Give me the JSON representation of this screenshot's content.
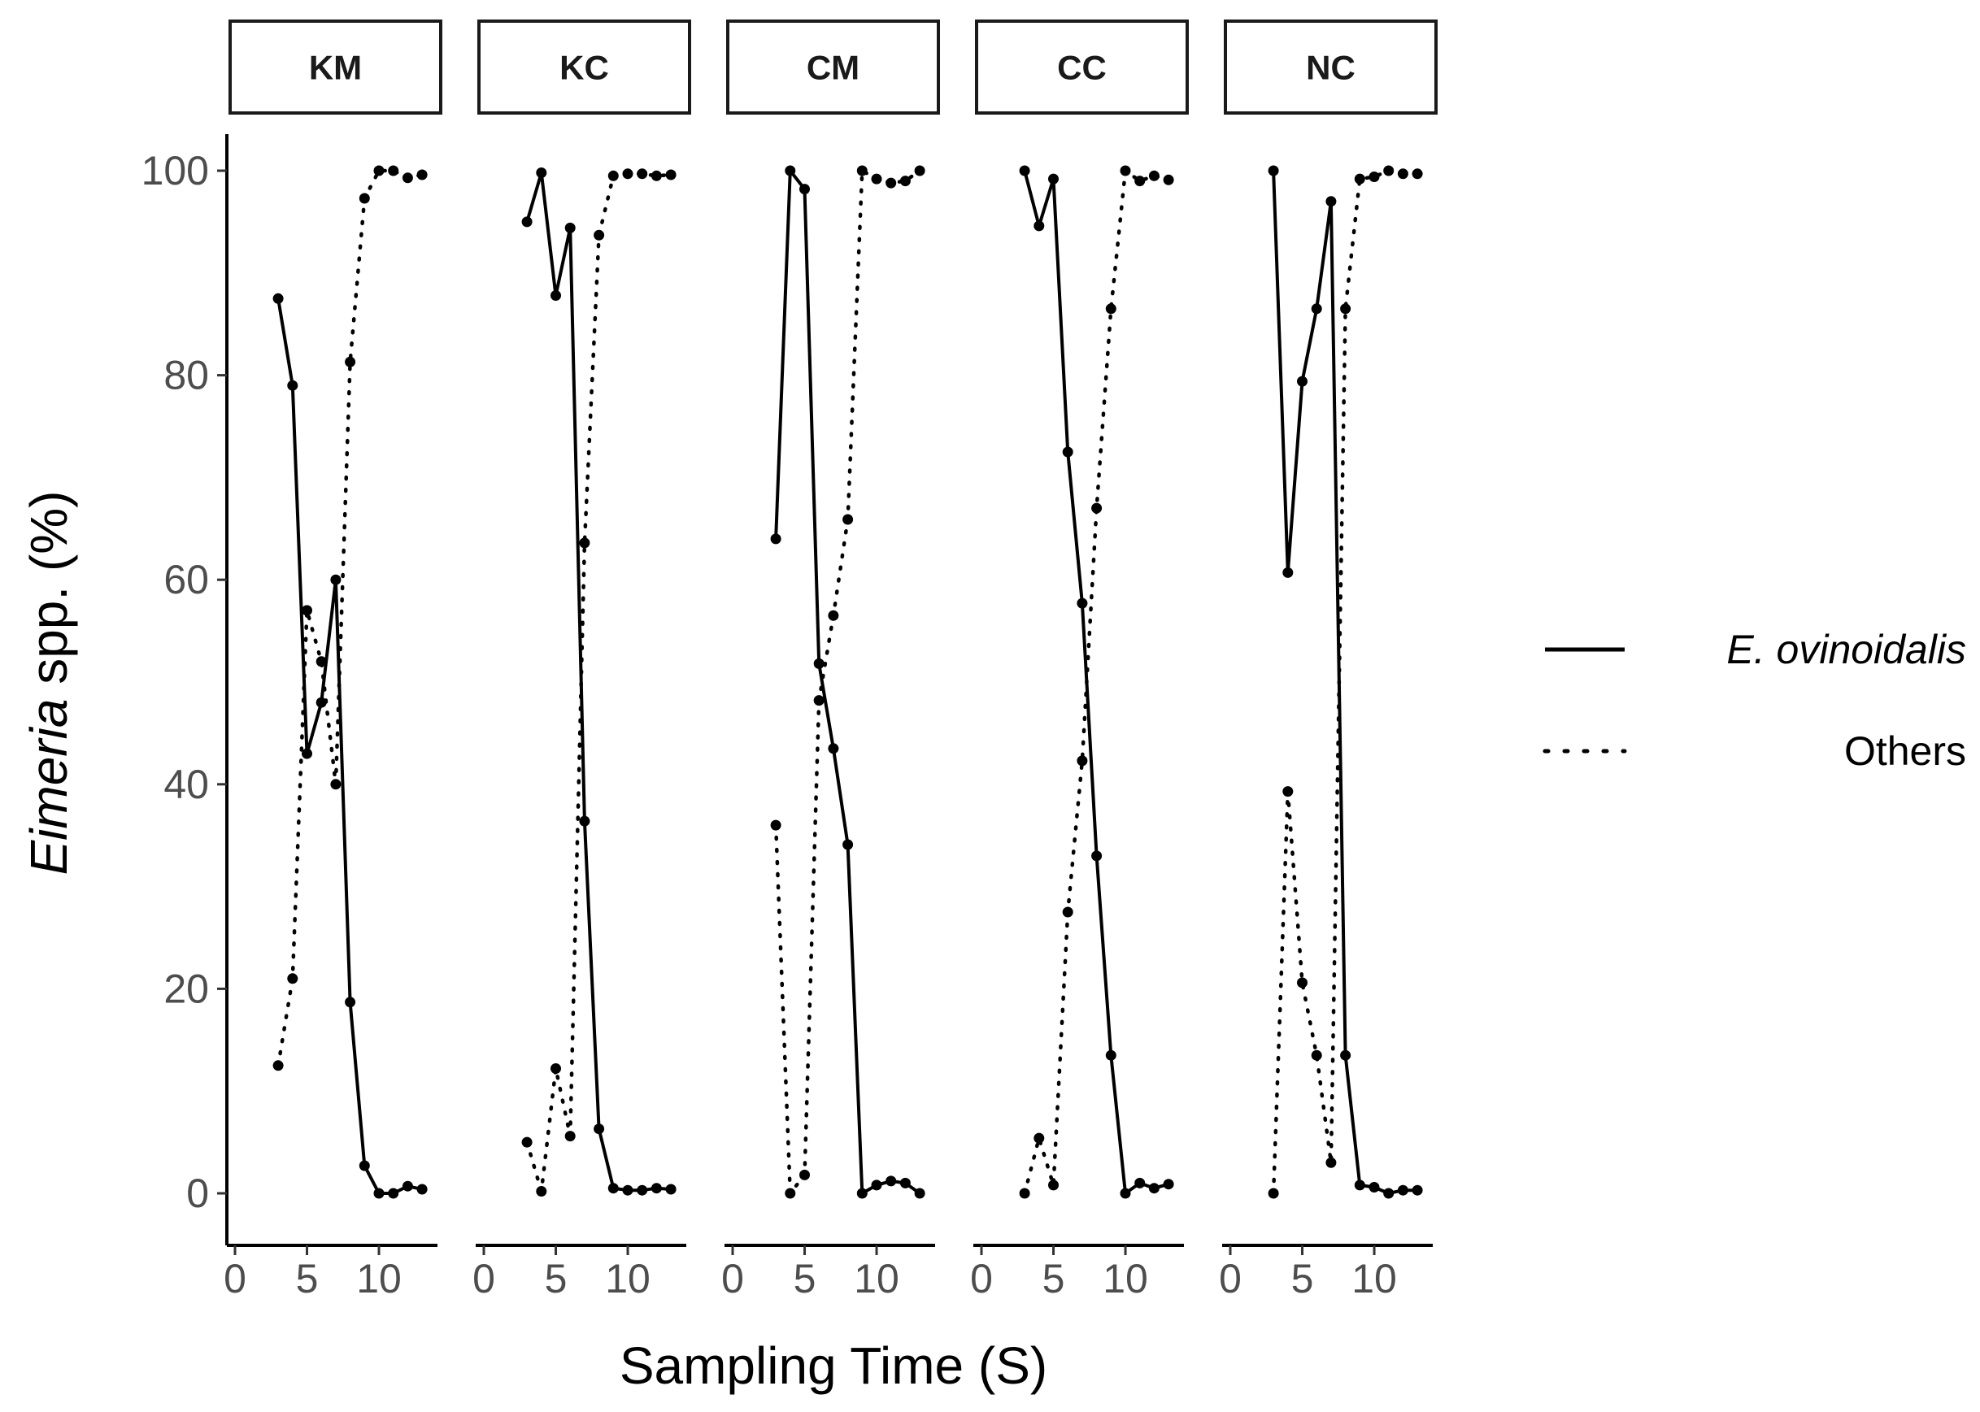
{
  "chart_data": {
    "type": "line",
    "xlabel": "Sampling Time (S)",
    "ylabel": {
      "italic": "Eimeria",
      "rest": " spp. (%)"
    },
    "xlim": [
      0,
      13.5
    ],
    "ylim": [
      0,
      100
    ],
    "xticks": [
      0,
      5,
      10
    ],
    "yticks": [
      0,
      20,
      40,
      60,
      80,
      100
    ],
    "legend": {
      "position": "right",
      "entries": [
        {
          "key": "E. ovinoidalis",
          "label": "E. ovinoidalis",
          "style": "solid"
        },
        {
          "key": "Others",
          "label": "Others",
          "style": "dotted"
        }
      ]
    },
    "panels": [
      {
        "label": "KM",
        "series": [
          {
            "name": "E. ovinoidalis",
            "x": [
              3,
              4,
              5,
              6,
              7,
              8,
              9,
              10,
              11,
              12,
              13
            ],
            "y": [
              87.5,
              79,
              43,
              48,
              60,
              18.7,
              2.7,
              0,
              0,
              0.7,
              0.4
            ]
          },
          {
            "name": "Others",
            "x": [
              3,
              4,
              5,
              6,
              7,
              8,
              9,
              10,
              11,
              12,
              13
            ],
            "y": [
              12.5,
              21,
              57,
              52,
              40,
              81.3,
              97.3,
              100,
              100,
              99.3,
              99.6
            ]
          }
        ]
      },
      {
        "label": "KC",
        "series": [
          {
            "name": "E. ovinoidalis",
            "x": [
              3,
              4,
              5,
              6,
              7,
              8,
              9,
              10,
              11,
              12,
              13
            ],
            "y": [
              95,
              99.8,
              87.8,
              94.4,
              36.4,
              6.3,
              0.5,
              0.3,
              0.3,
              0.5,
              0.4
            ]
          },
          {
            "name": "Others",
            "x": [
              3,
              4,
              5,
              6,
              7,
              8,
              9,
              10,
              11,
              12,
              13
            ],
            "y": [
              5,
              0.2,
              12.2,
              5.6,
              63.6,
              93.7,
              99.5,
              99.7,
              99.7,
              99.5,
              99.6
            ]
          }
        ]
      },
      {
        "label": "CM",
        "series": [
          {
            "name": "E. ovinoidalis",
            "x": [
              3,
              4,
              5,
              6,
              7,
              8,
              9,
              10,
              11,
              12,
              13
            ],
            "y": [
              64,
              100,
              98.2,
              51.8,
              43.5,
              34.1,
              0,
              0.8,
              1.2,
              1,
              0
            ]
          },
          {
            "name": "Others",
            "x": [
              3,
              4,
              5,
              6,
              7,
              8,
              9,
              10,
              11,
              12,
              13
            ],
            "y": [
              36,
              0,
              1.8,
              48.2,
              56.5,
              65.9,
              100,
              99.2,
              98.8,
              99,
              100
            ]
          }
        ]
      },
      {
        "label": "CC",
        "series": [
          {
            "name": "E. ovinoidalis",
            "x": [
              3,
              4,
              5,
              6,
              7,
              8,
              9,
              10,
              11,
              12,
              13
            ],
            "y": [
              100,
              94.6,
              99.2,
              72.5,
              57.7,
              33,
              13.5,
              0,
              1,
              0.5,
              0.9
            ]
          },
          {
            "name": "Others",
            "x": [
              3,
              4,
              5,
              6,
              7,
              8,
              9,
              10,
              11,
              12,
              13
            ],
            "y": [
              0,
              5.4,
              0.8,
              27.5,
              42.3,
              67,
              86.5,
              100,
              99,
              99.5,
              99.1
            ]
          }
        ]
      },
      {
        "label": "NC",
        "series": [
          {
            "name": "E. ovinoidalis",
            "x": [
              3,
              4,
              5,
              6,
              7,
              8,
              9,
              10,
              11,
              12,
              13
            ],
            "y": [
              100,
              60.7,
              79.4,
              86.5,
              97,
              13.5,
              0.8,
              0.6,
              0,
              0.3,
              0.3
            ]
          },
          {
            "name": "Others",
            "x": [
              3,
              4,
              5,
              6,
              7,
              8,
              9,
              10,
              11,
              12,
              13
            ],
            "y": [
              0,
              39.3,
              20.6,
              13.5,
              3,
              86.5,
              99.2,
              99.4,
              100,
              99.7,
              99.7
            ]
          }
        ]
      }
    ]
  }
}
